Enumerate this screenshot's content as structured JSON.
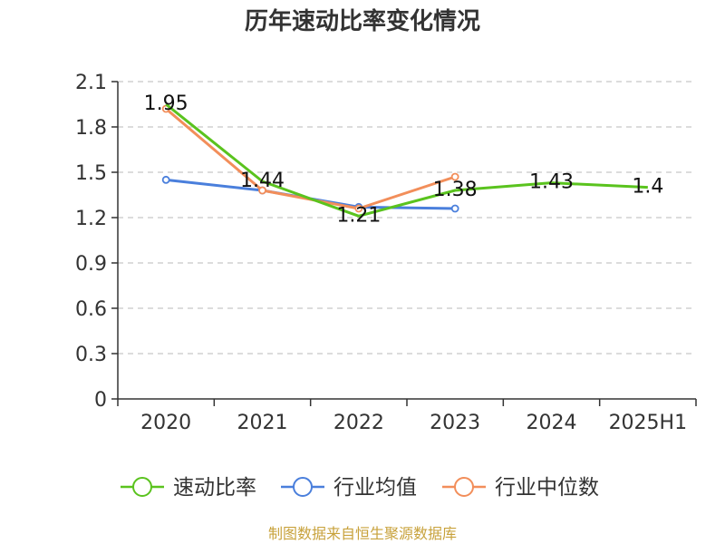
{
  "chart_data": {
    "type": "line",
    "title": "历年速动比率变化情况",
    "xlabel": "",
    "ylabel": "",
    "categories": [
      "2020",
      "2021",
      "2022",
      "2023",
      "2024",
      "2025H1"
    ],
    "ylim": [
      0,
      2.1
    ],
    "yticks": [
      "0",
      "0.3",
      "0.6",
      "0.9",
      "1.2",
      "1.5",
      "1.8",
      "2.1"
    ],
    "grid": true,
    "legend_position": "bottom",
    "series": [
      {
        "name": "速动比率",
        "color": "#5ac31e",
        "values": [
          1.95,
          1.44,
          1.21,
          1.38,
          1.43,
          1.4
        ],
        "labels": [
          "1.95",
          "1.44",
          "1.21",
          "1.38",
          "1.43",
          "1.4"
        ]
      },
      {
        "name": "行业均值",
        "color": "#4a7fdc",
        "values": [
          1.45,
          1.38,
          1.27,
          1.26,
          null,
          null
        ]
      },
      {
        "name": "行业中位数",
        "color": "#f28e5a",
        "values": [
          1.92,
          1.38,
          1.26,
          1.47,
          null,
          null
        ]
      }
    ]
  },
  "source_text": "制图数据来自恒生聚源数据库"
}
